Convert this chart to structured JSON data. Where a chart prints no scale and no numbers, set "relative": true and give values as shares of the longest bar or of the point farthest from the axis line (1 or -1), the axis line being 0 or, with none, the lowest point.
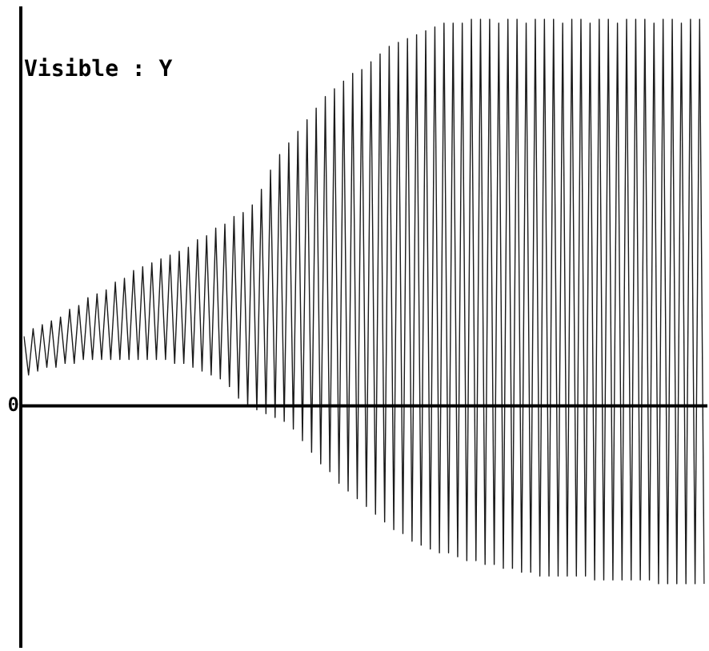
{
  "chart_data": {
    "type": "line",
    "ylabel": "Visible : Y",
    "annotations": [
      "0"
    ],
    "relative": true,
    "categories": [
      null,
      null,
      null,
      null,
      null,
      null,
      null,
      null,
      null,
      null,
      null,
      null,
      null,
      null,
      null,
      null,
      null,
      null,
      null,
      null,
      null,
      null,
      null,
      null,
      null,
      null,
      null,
      null,
      null,
      null,
      null,
      null,
      null,
      null,
      null,
      null,
      null,
      null,
      null,
      null,
      null,
      null,
      null,
      null,
      null,
      null,
      null,
      null,
      null,
      null,
      null,
      null,
      null,
      null,
      null,
      null,
      null,
      null,
      null,
      null,
      null,
      null,
      null,
      null,
      null,
      null,
      null,
      null,
      null,
      null,
      null,
      null,
      null,
      null,
      null,
      null,
      null,
      null,
      null,
      null,
      null,
      null,
      null,
      null,
      null,
      null,
      null,
      null,
      null,
      null,
      null,
      null,
      null,
      null,
      null,
      null,
      null,
      null,
      null,
      null,
      null,
      null,
      null,
      null,
      null,
      null,
      null,
      null,
      null,
      null,
      null,
      null,
      null,
      null,
      null,
      null,
      null,
      null,
      null,
      null,
      null,
      null,
      null,
      null,
      null,
      null,
      null,
      null,
      null,
      null,
      null,
      null,
      null,
      null,
      null,
      null,
      null,
      null,
      null,
      null,
      null,
      null,
      null,
      null,
      null,
      null,
      null,
      null,
      null,
      null
    ],
    "values": [
      0.18,
      0.08,
      0.2,
      0.09,
      0.21,
      0.1,
      0.22,
      0.1,
      0.23,
      0.11,
      0.25,
      0.11,
      0.26,
      0.12,
      0.28,
      0.12,
      0.29,
      0.12,
      0.3,
      0.12,
      0.32,
      0.12,
      0.33,
      0.12,
      0.35,
      0.12,
      0.36,
      0.12,
      0.37,
      0.12,
      0.38,
      0.12,
      0.39,
      0.11,
      0.4,
      0.11,
      0.41,
      0.1,
      0.43,
      0.09,
      0.44,
      0.08,
      0.46,
      0.07,
      0.47,
      0.05,
      0.49,
      0.02,
      0.5,
      0.0,
      0.52,
      -0.01,
      0.56,
      -0.02,
      0.61,
      -0.03,
      0.65,
      -0.04,
      0.68,
      -0.06,
      0.71,
      -0.09,
      0.74,
      -0.12,
      0.77,
      -0.15,
      0.8,
      -0.17,
      0.82,
      -0.2,
      0.84,
      -0.22,
      0.86,
      -0.24,
      0.87,
      -0.26,
      0.89,
      -0.28,
      0.91,
      -0.3,
      0.93,
      -0.32,
      0.94,
      -0.33,
      0.95,
      -0.35,
      0.96,
      -0.36,
      0.97,
      -0.37,
      0.98,
      -0.38,
      0.99,
      -0.38,
      0.99,
      -0.39,
      0.99,
      -0.4,
      1,
      -0.4,
      1,
      -0.41,
      1,
      -0.41,
      0.99,
      -0.42,
      1,
      -0.42,
      1,
      -0.43,
      0.99,
      -0.43,
      1,
      -0.44,
      1,
      -0.44,
      1,
      -0.44,
      0.99,
      -0.44,
      1,
      -0.44,
      1,
      -0.44,
      0.99,
      -0.45,
      1,
      -0.45,
      1,
      -0.45,
      0.99,
      -0.45,
      1,
      -0.45,
      1,
      -0.45,
      1,
      -0.45,
      0.99,
      -0.46,
      1,
      -0.46,
      1,
      -0.46,
      0.99,
      -0.46,
      1,
      -0.46,
      1,
      -0.46
    ],
    "color": "#1a1a1a",
    "marker": "none",
    "legend": false,
    "grid": false
  }
}
